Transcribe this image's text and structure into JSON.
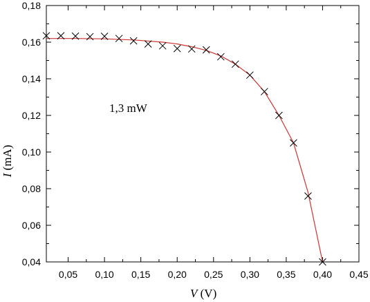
{
  "chart_data": {
    "type": "scatter",
    "title": "",
    "xlabel": {
      "var": "V",
      "unit": " (V)"
    },
    "ylabel": {
      "var": "I",
      "unit": " (mA)"
    },
    "xlim": [
      0.02,
      0.45
    ],
    "ylim": [
      0.04,
      0.18
    ],
    "grid": false,
    "legend": "none",
    "x_ticks": [
      0.05,
      0.1,
      0.15,
      0.2,
      0.25,
      0.3,
      0.35,
      0.4,
      0.45
    ],
    "x_tick_labels": [
      "0,05",
      "0,10",
      "0,15",
      "0,20",
      "0,25",
      "0,30",
      "0,35",
      "0,40",
      "0,45"
    ],
    "y_ticks": [
      0.04,
      0.06,
      0.08,
      0.1,
      0.12,
      0.14,
      0.16,
      0.18
    ],
    "y_tick_labels": [
      "0,04",
      "0,06",
      "0,08",
      "0,10",
      "0,12",
      "0,14",
      "0,16",
      "0,18"
    ],
    "annotation": "1,3 mW",
    "colors": {
      "marker": "#000000",
      "fit_line": "#cc3333",
      "axes": "#000000"
    },
    "series": [
      {
        "kind": "markers",
        "marker": "x",
        "points": [
          [
            0.02,
            0.1635
          ],
          [
            0.04,
            0.1635
          ],
          [
            0.06,
            0.1633
          ],
          [
            0.08,
            0.163
          ],
          [
            0.1,
            0.1632
          ],
          [
            0.12,
            0.162
          ],
          [
            0.14,
            0.1607
          ],
          [
            0.16,
            0.159
          ],
          [
            0.18,
            0.158
          ],
          [
            0.2,
            0.1565
          ],
          [
            0.22,
            0.1563
          ],
          [
            0.24,
            0.1558
          ],
          [
            0.26,
            0.152
          ],
          [
            0.28,
            0.148
          ],
          [
            0.3,
            0.142
          ],
          [
            0.32,
            0.133
          ],
          [
            0.34,
            0.12
          ],
          [
            0.36,
            0.105
          ],
          [
            0.38,
            0.076
          ],
          [
            0.4,
            0.04
          ]
        ]
      },
      {
        "kind": "fit",
        "points": [
          [
            0.02,
            0.162
          ],
          [
            0.06,
            0.162
          ],
          [
            0.1,
            0.1618
          ],
          [
            0.14,
            0.1612
          ],
          [
            0.18,
            0.16
          ],
          [
            0.2,
            0.159
          ],
          [
            0.22,
            0.1575
          ],
          [
            0.24,
            0.1555
          ],
          [
            0.26,
            0.1525
          ],
          [
            0.28,
            0.148
          ],
          [
            0.3,
            0.142
          ],
          [
            0.32,
            0.133
          ],
          [
            0.34,
            0.12
          ],
          [
            0.36,
            0.105
          ],
          [
            0.38,
            0.078
          ],
          [
            0.4,
            0.04
          ]
        ]
      }
    ]
  }
}
